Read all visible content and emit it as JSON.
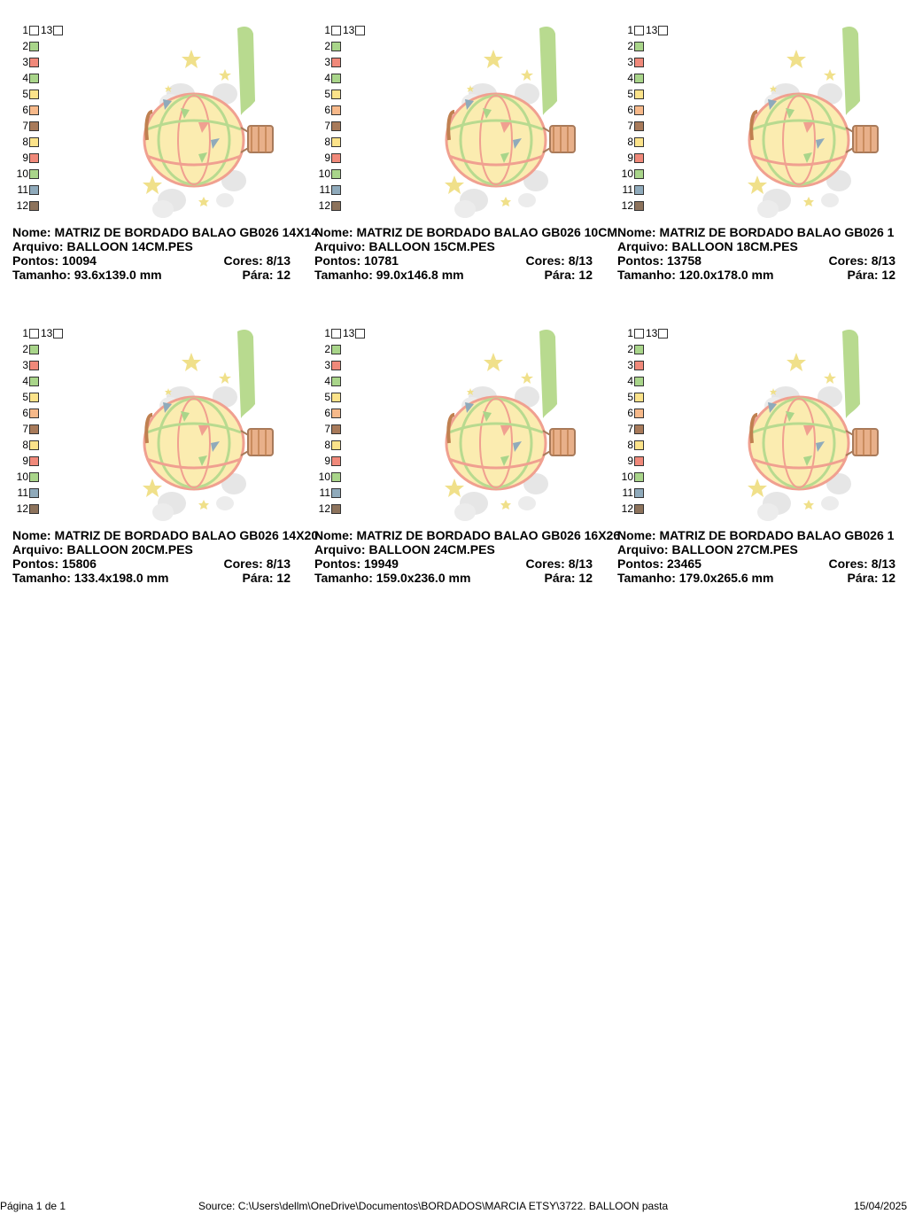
{
  "labels": {
    "nome": "Nome:",
    "arquivo": "Arquivo:",
    "pontos": "Pontos:",
    "cores": "Cores:",
    "tamanho": "Tamanho:",
    "para": "Pára:"
  },
  "palette": {
    "numbers": [
      "1",
      "2",
      "3",
      "4",
      "5",
      "6",
      "7",
      "8",
      "9",
      "10",
      "11",
      "12"
    ],
    "extra_number": "13",
    "colors": [
      "#ffffff",
      "#a9d58a",
      "#f0897a",
      "#a9d58a",
      "#fce38a",
      "#f7b98a",
      "#a87a5a",
      "#fce38a",
      "#f0897a",
      "#a9d58a",
      "#8faabb",
      "#8d735c"
    ],
    "extra_color": "#ffffff"
  },
  "designs": [
    {
      "nome": "MATRIZ DE BORDADO BALAO GB026 14X14",
      "arquivo": "BALLOON 14CM.PES",
      "pontos": "10094",
      "cores": "8/13",
      "tamanho": "93.6x139.0 mm",
      "para": "12"
    },
    {
      "nome": "MATRIZ DE BORDADO BALAO GB026 10CM",
      "arquivo": "BALLOON 15CM.PES",
      "pontos": "10781",
      "cores": "8/13",
      "tamanho": "99.0x146.8 mm",
      "para": "12"
    },
    {
      "nome": "MATRIZ DE BORDADO BALAO GB026 1",
      "arquivo": "BALLOON 18CM.PES",
      "pontos": "13758",
      "cores": "8/13",
      "tamanho": "120.0x178.0 mm",
      "para": "12"
    },
    {
      "nome": "MATRIZ DE BORDADO BALAO GB026 14X20",
      "arquivo": "BALLOON 20CM.PES",
      "pontos": "15806",
      "cores": "8/13",
      "tamanho": "133.4x198.0 mm",
      "para": "12"
    },
    {
      "nome": "MATRIZ DE BORDADO BALAO GB026 16X26",
      "arquivo": "BALLOON 24CM.PES",
      "pontos": "19949",
      "cores": "8/13",
      "tamanho": "159.0x236.0 mm",
      "para": "12"
    },
    {
      "nome": "MATRIZ DE BORDADO BALAO GB026 1",
      "arquivo": "BALLOON 27CM.PES",
      "pontos": "23465",
      "cores": "8/13",
      "tamanho": "179.0x265.6 mm",
      "para": "12"
    }
  ],
  "footer": {
    "page": "Página 1 de 1",
    "source": "Source: C:\\Users\\dellm\\OneDrive\\Documentos\\BORDADOS\\MARCIA ETSY\\3722. BALLOON pasta",
    "date": "15/04/2025"
  }
}
